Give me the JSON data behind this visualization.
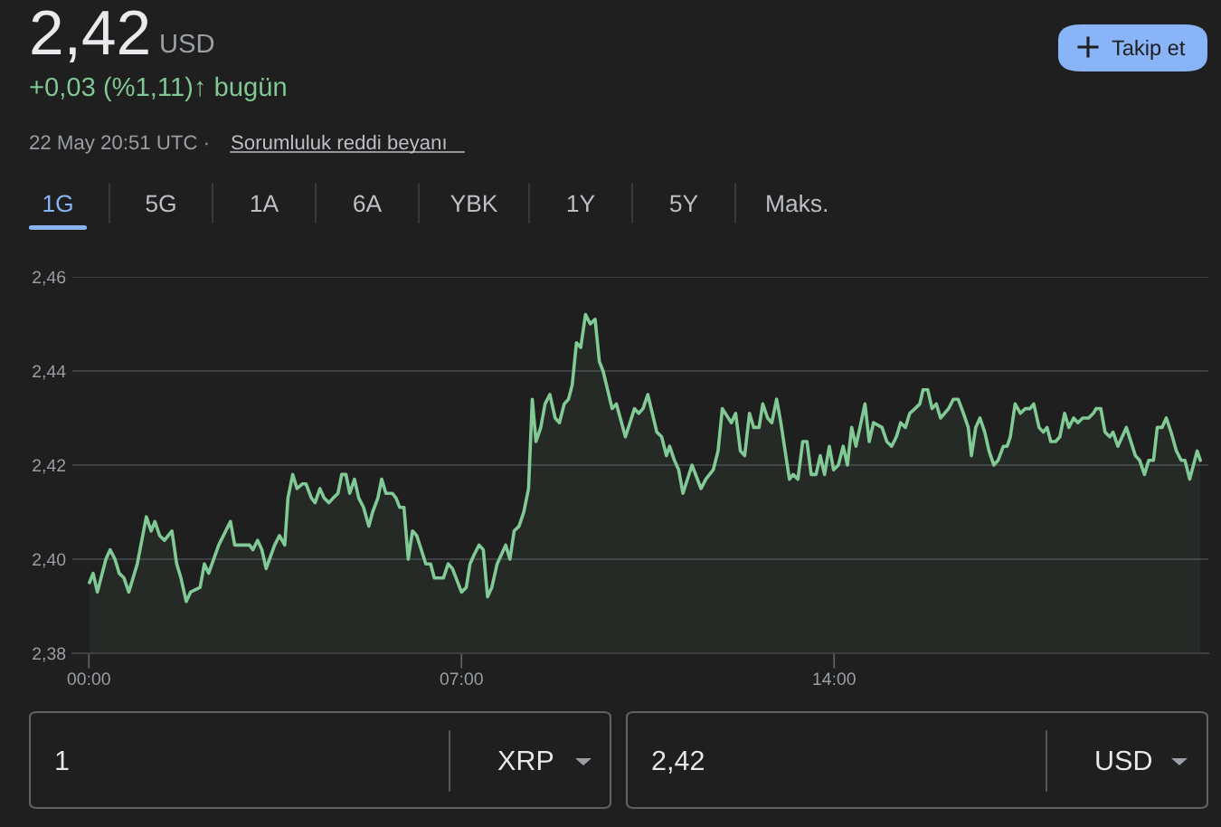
{
  "chart_data": {
    "type": "area",
    "title": "2,42",
    "annotations": [
      "USD",
      "+0,03 (%1,11)↑ bugün",
      "22 May 20:51 UTC ·",
      "Sorumluluk reddi beyanı",
      "Takip et",
      "1G",
      "5G",
      "1A",
      "6A",
      "YBK",
      "1Y",
      "5Y",
      "Maks.",
      "1",
      "XRP",
      "2,42",
      "USD"
    ],
    "series": [
      {
        "color": "#81c995",
        "x": [
          0.01,
          0.08,
          0.16,
          0.32,
          0.4,
          0.49,
          0.57,
          0.66,
          0.75,
          0.83,
          0.91,
          1.08,
          1.17,
          1.24,
          1.33,
          1.42,
          1.56,
          1.65,
          1.73,
          1.83,
          1.91,
          2.09,
          2.17,
          2.25,
          2.44,
          2.66,
          2.74,
          2.82,
          2.92,
          3.02,
          3.08,
          3.17,
          3.25,
          3.33,
          3.49,
          3.58,
          3.68,
          3.74,
          3.83,
          3.91,
          4.01,
          4.08,
          4.18,
          4.25,
          4.34,
          4.42,
          4.51,
          4.59,
          4.68,
          4.75,
          4.83,
          4.9,
          4.99,
          5.07,
          5.16,
          5.26,
          5.33,
          5.43,
          5.5,
          5.58,
          5.7,
          5.77,
          5.84,
          5.92,
          6.0,
          6.08,
          6.16,
          6.33,
          6.42,
          6.49,
          6.66,
          6.75,
          6.83,
          7.0,
          7.09,
          7.16,
          7.24,
          7.33,
          7.41,
          7.49,
          7.57,
          7.67,
          7.83,
          7.91,
          7.99,
          8.08,
          8.17,
          8.26,
          8.33,
          8.4,
          8.49,
          8.57,
          8.66,
          8.76,
          8.84,
          8.93,
          9.01,
          9.08,
          9.16,
          9.24,
          9.33,
          9.42,
          9.51,
          9.59,
          9.66,
          9.83,
          9.91,
          10.08,
          10.25,
          10.33,
          10.41,
          10.5,
          10.67,
          10.76,
          10.85,
          10.91,
          11.0,
          11.08,
          11.16,
          11.33,
          11.5,
          11.59,
          11.73,
          11.82,
          11.9,
          12.07,
          12.15,
          12.24,
          12.32,
          12.41,
          12.49,
          12.59,
          12.66,
          12.75,
          12.83,
          12.92,
          13.0,
          13.16,
          13.23,
          13.32,
          13.41,
          13.49,
          13.57,
          13.66,
          13.74,
          13.82,
          13.91,
          13.99,
          14.08,
          14.17,
          14.25,
          14.33,
          14.41,
          14.58,
          14.66,
          14.74,
          14.9,
          14.99,
          15.08,
          15.17,
          15.25,
          15.34,
          15.42,
          15.52,
          15.61,
          15.67,
          15.76,
          15.84,
          15.92,
          16.0,
          16.15,
          16.24,
          16.33,
          16.43,
          16.52,
          16.58,
          16.66,
          16.74,
          16.83,
          16.91,
          17.0,
          17.08,
          17.18,
          17.25,
          17.31,
          17.4,
          17.5,
          17.59,
          17.68,
          17.75,
          17.85,
          17.93,
          18.0,
          18.07,
          18.16,
          18.24,
          18.33,
          18.41,
          18.5,
          18.58,
          18.67,
          18.78,
          18.87,
          18.92,
          19.01,
          19.09,
          19.18,
          19.24,
          19.33,
          19.49,
          19.66,
          19.74,
          19.83,
          19.91,
          20.0,
          20.07,
          20.16,
          20.24,
          20.33,
          20.43,
          20.52,
          20.59,
          20.68,
          20.82,
          20.88
        ],
        "values": [
          2.395,
          2.397,
          2.393,
          2.4,
          2.402,
          2.4,
          2.397,
          2.396,
          2.393,
          2.396,
          2.399,
          2.409,
          2.406,
          2.408,
          2.405,
          2.404,
          2.406,
          2.399,
          2.396,
          2.391,
          2.393,
          2.394,
          2.399,
          2.397,
          2.403,
          2.408,
          2.403,
          2.403,
          2.403,
          2.403,
          2.402,
          2.404,
          2.402,
          2.398,
          2.403,
          2.405,
          2.403,
          2.413,
          2.418,
          2.415,
          2.416,
          2.416,
          2.413,
          2.412,
          2.415,
          2.413,
          2.412,
          2.413,
          2.414,
          2.418,
          2.418,
          2.414,
          2.417,
          2.413,
          2.411,
          2.407,
          2.41,
          2.413,
          2.417,
          2.414,
          2.414,
          2.413,
          2.411,
          2.411,
          2.4,
          2.406,
          2.405,
          2.399,
          2.399,
          2.396,
          2.396,
          2.399,
          2.398,
          2.393,
          2.394,
          2.399,
          2.401,
          2.403,
          2.402,
          2.392,
          2.394,
          2.399,
          2.403,
          2.4,
          2.406,
          2.407,
          2.41,
          2.415,
          2.434,
          2.425,
          2.428,
          2.433,
          2.435,
          2.43,
          2.429,
          2.433,
          2.434,
          2.437,
          2.446,
          2.445,
          2.452,
          2.45,
          2.451,
          2.442,
          2.44,
          2.432,
          2.433,
          2.426,
          2.432,
          2.431,
          2.432,
          2.435,
          2.427,
          2.426,
          2.422,
          2.424,
          2.421,
          2.419,
          2.414,
          2.42,
          2.415,
          2.417,
          2.419,
          2.423,
          2.432,
          2.429,
          2.431,
          2.423,
          2.422,
          2.431,
          2.428,
          2.428,
          2.433,
          2.43,
          2.429,
          2.434,
          2.429,
          2.417,
          2.418,
          2.417,
          2.425,
          2.425,
          2.418,
          2.418,
          2.422,
          2.418,
          2.424,
          2.419,
          2.42,
          2.424,
          2.42,
          2.428,
          2.424,
          2.433,
          2.425,
          2.429,
          2.428,
          2.425,
          2.424,
          2.426,
          2.429,
          2.428,
          2.431,
          2.432,
          2.433,
          2.436,
          2.436,
          2.432,
          2.433,
          2.43,
          2.432,
          2.434,
          2.434,
          2.431,
          2.428,
          2.422,
          2.428,
          2.43,
          2.427,
          2.423,
          2.42,
          2.421,
          2.424,
          2.424,
          2.426,
          2.433,
          2.431,
          2.432,
          2.432,
          2.433,
          2.428,
          2.427,
          2.428,
          2.425,
          2.425,
          2.426,
          2.431,
          2.428,
          2.43,
          2.429,
          2.43,
          2.43,
          2.431,
          2.432,
          2.432,
          2.427,
          2.426,
          2.427,
          2.424,
          2.428,
          2.422,
          2.421,
          2.418,
          2.421,
          2.421,
          2.428,
          2.428,
          2.43,
          2.427,
          2.423,
          2.421,
          2.421,
          2.417,
          2.423,
          2.421
        ]
      }
    ],
    "xlim": [
      -0.31,
      21.03
    ],
    "xticks": [
      {
        "value": 0,
        "label": "00:00"
      },
      {
        "value": 7,
        "label": "07:00"
      },
      {
        "value": 14,
        "label": "14:00"
      }
    ],
    "ylim": [
      2.38,
      2.46
    ],
    "yticks": [
      {
        "value": 2.38,
        "label": "2,38"
      },
      {
        "value": 2.4,
        "label": "2,40"
      },
      {
        "value": 2.42,
        "label": "2,42"
      },
      {
        "value": 2.44,
        "label": "2,44"
      },
      {
        "value": 2.46,
        "label": "2,46"
      }
    ],
    "grid": "y"
  }
}
